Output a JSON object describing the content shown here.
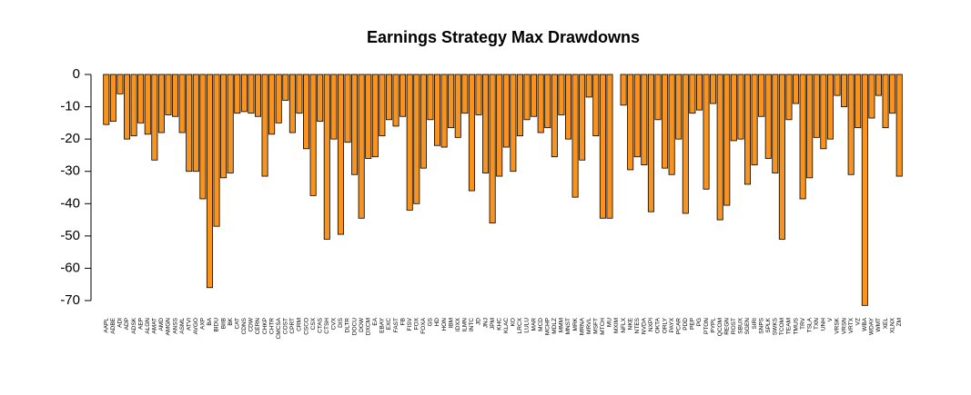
{
  "chart_data": {
    "type": "bar",
    "title": "Earnings Strategy Max Drawdowns",
    "categories": [
      "AAPL",
      "ADBE",
      "ADI",
      "ADP",
      "ADSK",
      "AEP",
      "ALGN",
      "AMAT",
      "AMD",
      "AMGN",
      "ANSS",
      "ASML",
      "ATVI",
      "AVGO",
      "AXP",
      "BA",
      "BIDU",
      "BIIB",
      "BK",
      "CAT",
      "CDNS",
      "CDW",
      "CERN",
      "CHKP",
      "CHTR",
      "CMCSA",
      "COST",
      "CPRT",
      "CRM",
      "CSCO",
      "CSX",
      "CTAS",
      "CTSH",
      "CVX",
      "DIS",
      "DLTR",
      "DOCU",
      "DOW",
      "DXCM",
      "EA",
      "EBAY",
      "EXC",
      "FAST",
      "FB",
      "FISV",
      "FOX",
      "FOXA",
      "GS",
      "HD",
      "HON",
      "IBM",
      "IDXX",
      "ILMN",
      "INTC",
      "JD",
      "JNJ",
      "JPM",
      "KHC",
      "KLAC",
      "KO",
      "LRCX",
      "LULU",
      "MAR",
      "MCD",
      "MCHP",
      "MDLZ",
      "MMM",
      "MNST",
      "MRK",
      "MRNA",
      "MRVL",
      "MSFT",
      "MTCH",
      "MU",
      "MXIM",
      "NFLX",
      "NKE",
      "NTES",
      "NVDA",
      "NXPI",
      "OKTA",
      "ORLY",
      "PAYX",
      "PCAR",
      "PDD",
      "PEP",
      "PG",
      "PTON",
      "PYPL",
      "QCOM",
      "REGN",
      "ROST",
      "SBUX",
      "SGEN",
      "SIRI",
      "SNPS",
      "SPLK",
      "SWKS",
      "TCOM",
      "TEAM",
      "TMUS",
      "TRV",
      "TSLA",
      "TXN",
      "UNH",
      "V",
      "VRSK",
      "VRSN",
      "VRTX",
      "VZ",
      "WBA",
      "WDAY",
      "WMT",
      "XEL",
      "XLNX",
      "ZM"
    ],
    "values": [
      -15.5,
      -14.5,
      -6,
      -20,
      -19,
      -15,
      -18.5,
      -26.5,
      -18,
      -12.5,
      -13,
      -18,
      -30,
      -30,
      -38.5,
      -66,
      -47,
      -32,
      -30.5,
      -12,
      -11.5,
      -12,
      -13,
      -31.5,
      -18.5,
      -15,
      -8,
      -18,
      -12,
      -23,
      -37.5,
      -14.5,
      -51,
      -20,
      -49.5,
      -21,
      -31,
      -44.5,
      -26,
      -25.5,
      -19,
      -14,
      -16,
      -13,
      -42,
      -40,
      -29,
      -14,
      -22,
      -22.5,
      -16.5,
      -19.5,
      -12,
      -36,
      -12.5,
      -30.5,
      -46,
      -31.5,
      -22.5,
      -30,
      -19,
      -14,
      -13,
      -18,
      -16.5,
      -25.5,
      -12.5,
      -20,
      -38,
      -26.5,
      -7,
      -19,
      -44.5,
      -44.5,
      0,
      -9.5,
      -29.5,
      -25.5,
      -28,
      -42.5,
      -14,
      -29,
      -31,
      -20,
      -43,
      -12,
      -11,
      -35.5,
      -9,
      -45,
      -40.5,
      -20.5,
      -20,
      -34,
      -28,
      -13,
      -26,
      -30.5,
      -51,
      -14,
      -9,
      -38.5,
      -32,
      -19.5,
      -23,
      -20,
      -6.5,
      -10,
      -31,
      -16.5,
      -71.5,
      -13.5,
      -6.5,
      -16.5,
      -12,
      -31.5
    ],
    "color": "#f7931e",
    "ylim": [
      -75,
      0
    ],
    "yticks": [
      0,
      -10,
      -20,
      -30,
      -40,
      -50,
      -60,
      -70
    ]
  }
}
